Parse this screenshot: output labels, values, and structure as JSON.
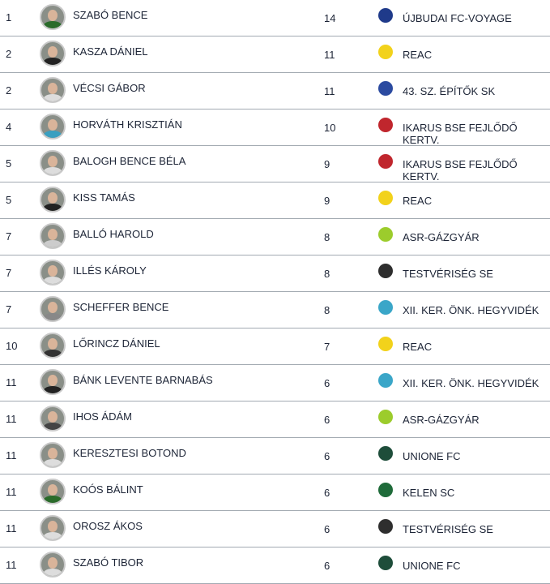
{
  "rows": [
    {
      "rank": "1",
      "name": "SZABÓ BENCE",
      "goals": "14",
      "club": "ÚJBUDAI FC-VOYAGE",
      "crest_color": "#1f3a8a",
      "shirt": "#2a6b2a"
    },
    {
      "rank": "2",
      "name": "KASZA DÁNIEL",
      "goals": "11",
      "club": "REAC",
      "crest_color": "#f2d21b",
      "shirt": "#222"
    },
    {
      "rank": "2",
      "name": "VÉCSI GÁBOR",
      "goals": "11",
      "club": "43. SZ. ÉPÍTŐK SK",
      "crest_color": "#2b4aa0",
      "shirt": "#ddd"
    },
    {
      "rank": "4",
      "name": "HORVÁTH KRISZTIÁN",
      "goals": "10",
      "club": "IKARUS BSE FEJLŐDŐ KERTV.",
      "crest_color": "#c0262d",
      "shirt": "#3a9fc0"
    },
    {
      "rank": "5",
      "name": "BALOGH BENCE BÉLA",
      "goals": "9",
      "club": "IKARUS BSE FEJLŐDŐ KERTV.",
      "crest_color": "#c0262d",
      "shirt": "#ddd"
    },
    {
      "rank": "5",
      "name": "KISS TAMÁS",
      "goals": "9",
      "club": "REAC",
      "crest_color": "#f2d21b",
      "shirt": "#222"
    },
    {
      "rank": "7",
      "name": "BALLÓ HAROLD",
      "goals": "8",
      "club": "ASR-GÁZGYÁR",
      "crest_color": "#9ccc2c",
      "shirt": "#ccc"
    },
    {
      "rank": "7",
      "name": "ILLÉS KÁROLY",
      "goals": "8",
      "club": "TESTVÉRISÉG SE",
      "crest_color": "#2e2e2e",
      "shirt": "#ddd"
    },
    {
      "rank": "7",
      "name": "SCHEFFER BENCE",
      "goals": "8",
      "club": "XII. KER. ÖNK. HEGYVIDÉK",
      "crest_color": "#3aa6c8",
      "shirt": "#888"
    },
    {
      "rank": "10",
      "name": "LŐRINCZ DÁNIEL",
      "goals": "7",
      "club": "REAC",
      "crest_color": "#f2d21b",
      "shirt": "#333"
    },
    {
      "rank": "11",
      "name": "BÁNK LEVENTE BARNABÁS",
      "goals": "6",
      "club": "XII. KER. ÖNK. HEGYVIDÉK",
      "crest_color": "#3aa6c8",
      "shirt": "#222"
    },
    {
      "rank": "11",
      "name": "IHOS ÁDÁM",
      "goals": "6",
      "club": "ASR-GÁZGYÁR",
      "crest_color": "#9ccc2c",
      "shirt": "#444"
    },
    {
      "rank": "11",
      "name": "KERESZTESI BOTOND",
      "goals": "6",
      "club": "UNIONE FC",
      "crest_color": "#1e4d3a",
      "shirt": "#ddd"
    },
    {
      "rank": "11",
      "name": "KOÓS BÁLINT",
      "goals": "6",
      "club": "KELEN SC",
      "crest_color": "#1f6b3a",
      "shirt": "#2a6b2a"
    },
    {
      "rank": "11",
      "name": "OROSZ ÁKOS",
      "goals": "6",
      "club": "TESTVÉRISÉG SE",
      "crest_color": "#2e2e2e",
      "shirt": "#ddd"
    },
    {
      "rank": "11",
      "name": "SZABÓ TIBOR",
      "goals": "6",
      "club": "UNIONE FC",
      "crest_color": "#1e4d3a",
      "shirt": "#ddd"
    }
  ]
}
